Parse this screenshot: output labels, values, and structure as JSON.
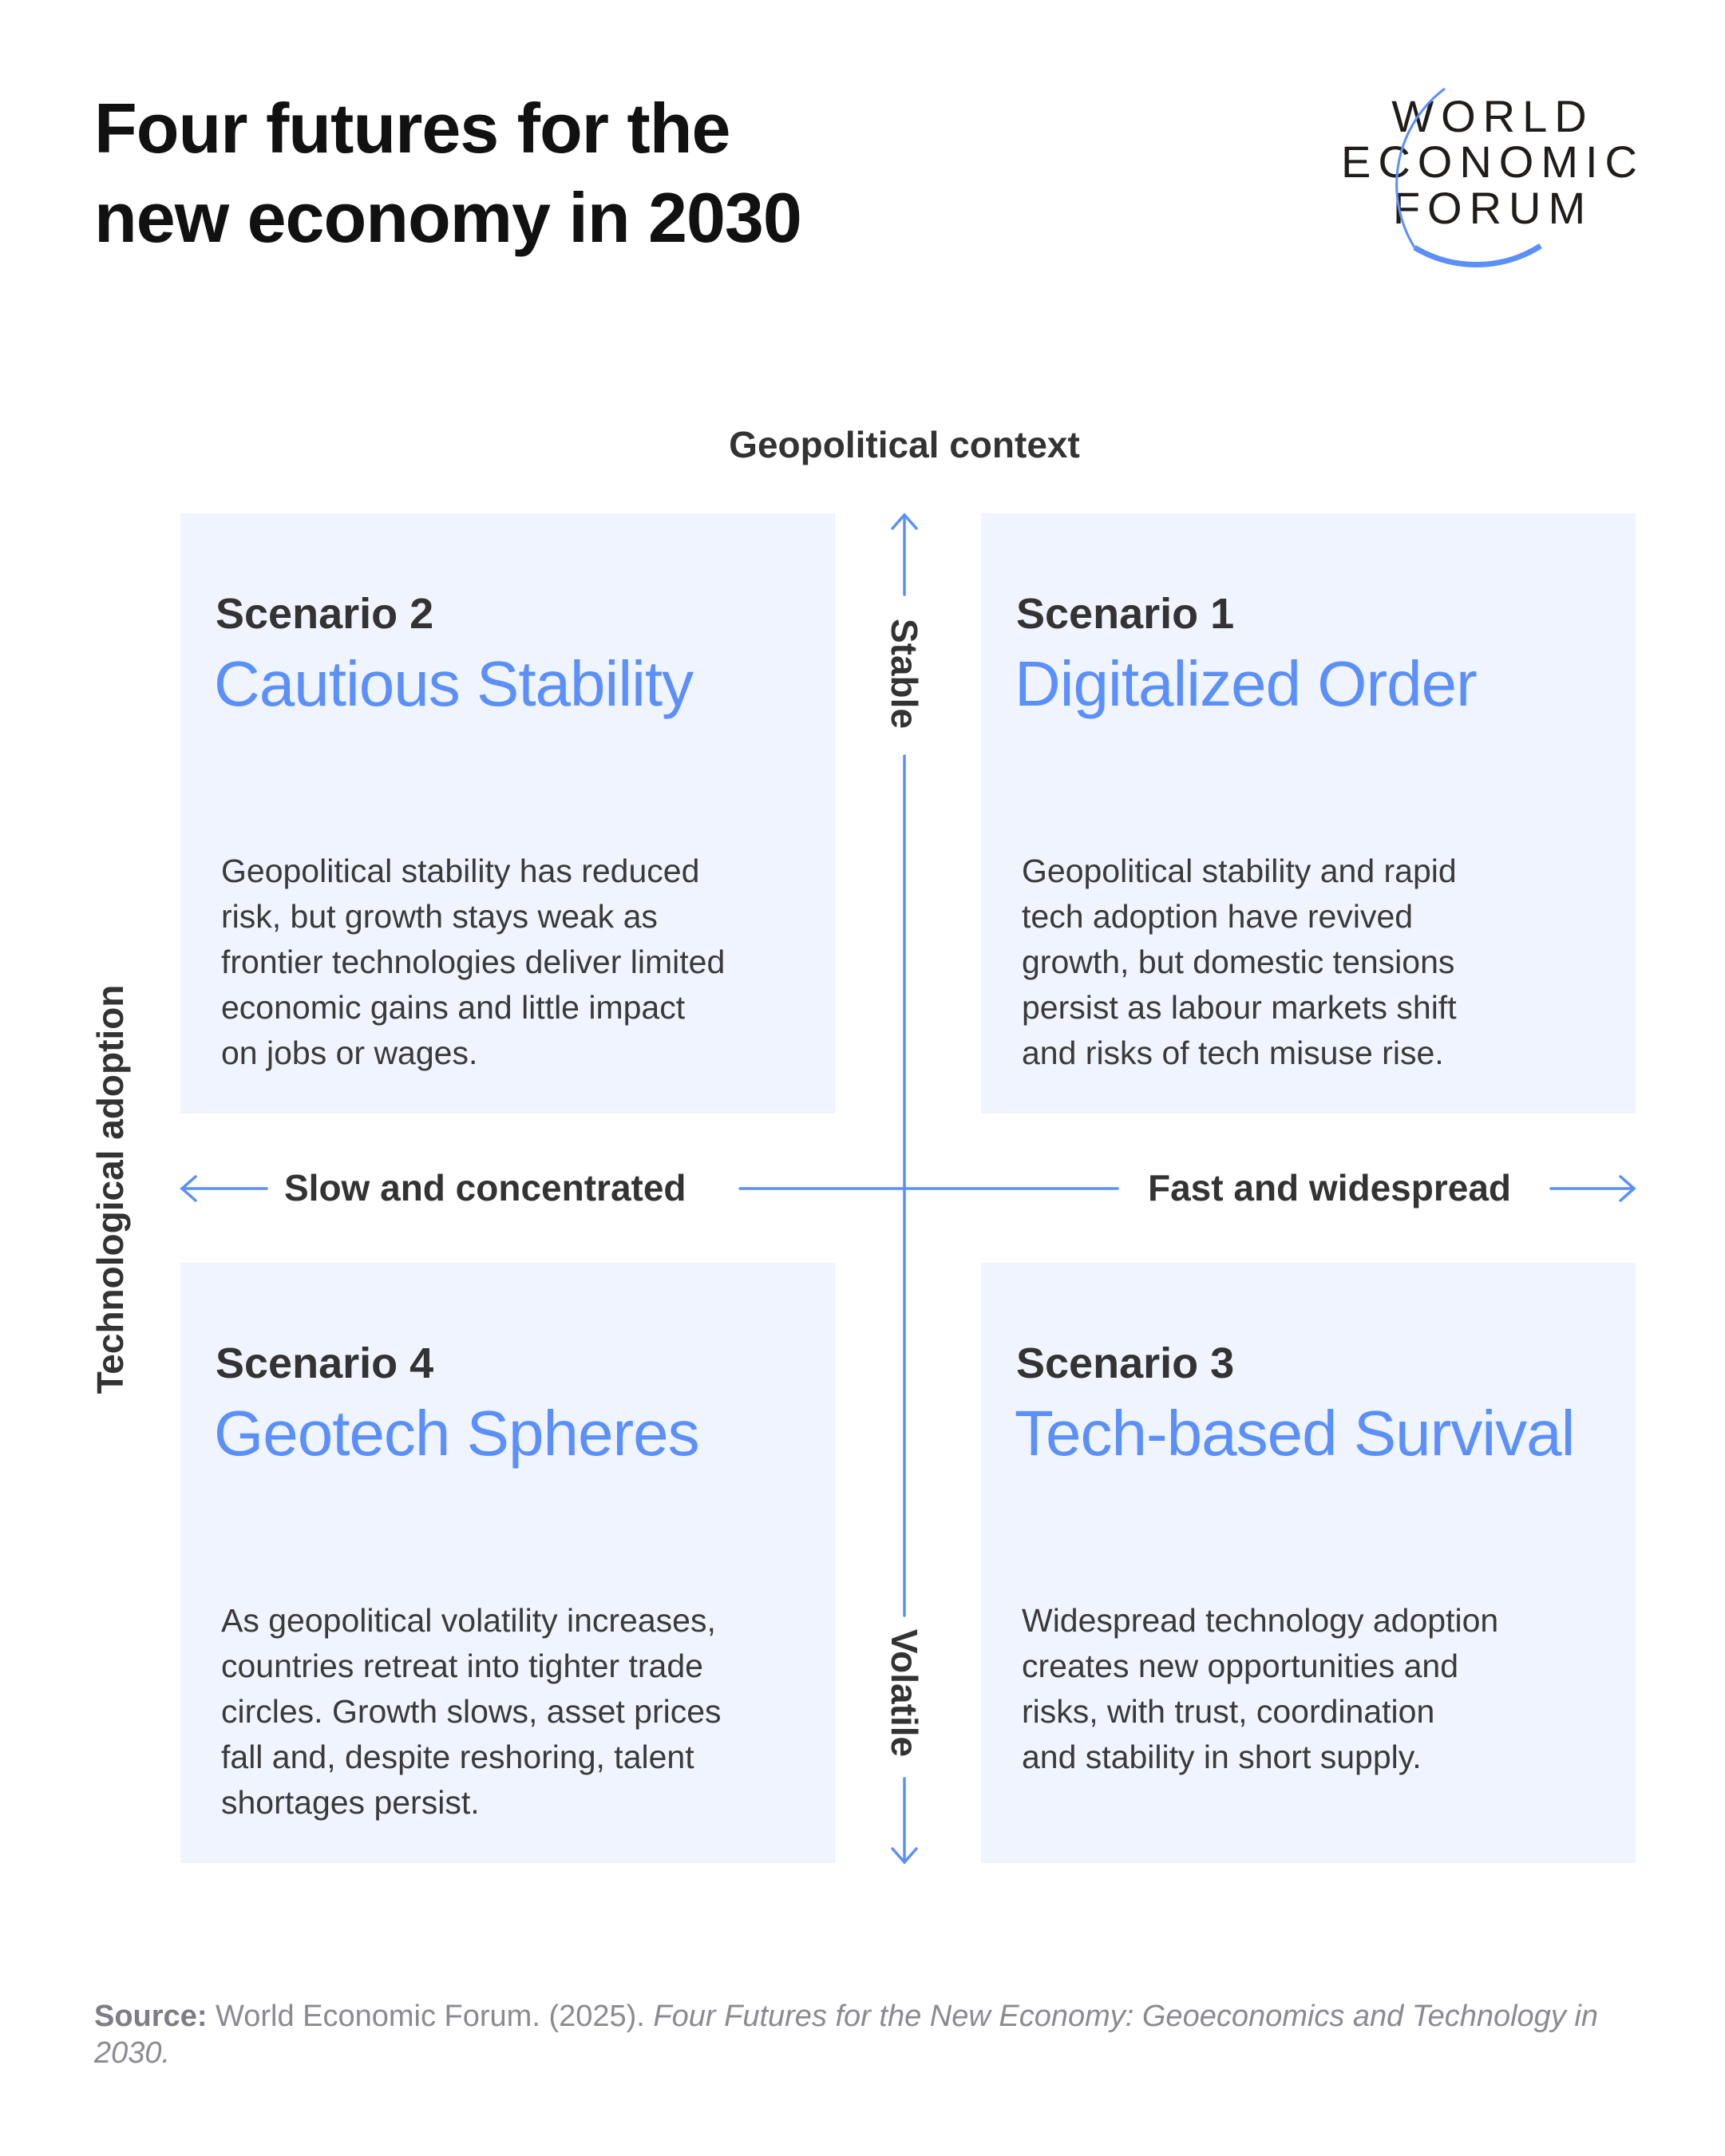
{
  "header": {
    "title_lines": [
      "Four futures for the",
      "new economy in 2030"
    ],
    "logo_text": [
      "WORLD",
      "ECONOMIC",
      "FORUM"
    ]
  },
  "axes": {
    "vertical_title": "Geopolitical context",
    "vertical_top": "Stable",
    "vertical_bottom": "Volatile",
    "horizontal_title": "Technological adoption",
    "horizontal_left": "Slow and concentrated",
    "horizontal_right": "Fast and widespread"
  },
  "colors": {
    "accent": "#5b8ff9",
    "box_bg": "#eff4fe",
    "text": "#333333"
  },
  "scenarios": [
    {
      "label": "Scenario 2",
      "name": "Cautious Stability",
      "body": [
        "Geopolitical stability has reduced",
        "risk, but growth stays weak as",
        "frontier technologies deliver limited",
        "economic gains and little impact",
        "on jobs or wages."
      ]
    },
    {
      "label": "Scenario 1",
      "name": "Digitalized Order",
      "body": [
        "Geopolitical stability and rapid",
        "tech adoption have revived",
        "growth, but domestic tensions",
        "persist as labour markets shift",
        "and risks of tech misuse rise."
      ]
    },
    {
      "label": "Scenario 4",
      "name": "Geotech Spheres",
      "body": [
        "As geopolitical volatility increases,",
        "countries retreat into tighter trade",
        "circles. Growth slows, asset prices",
        "fall and, despite reshoring, talent",
        "shortages persist."
      ]
    },
    {
      "label": "Scenario 3",
      "name": "Tech-based Survival",
      "body": [
        "Widespread technology adoption",
        "creates new opportunities and",
        "risks, with trust, coordination",
        "and stability in short supply."
      ]
    }
  ],
  "source": {
    "label": "Source:",
    "text": "World Economic Forum. (2025).",
    "publication": "Four Futures for the New Economy: Geoeconomics and Technology in 2030."
  }
}
